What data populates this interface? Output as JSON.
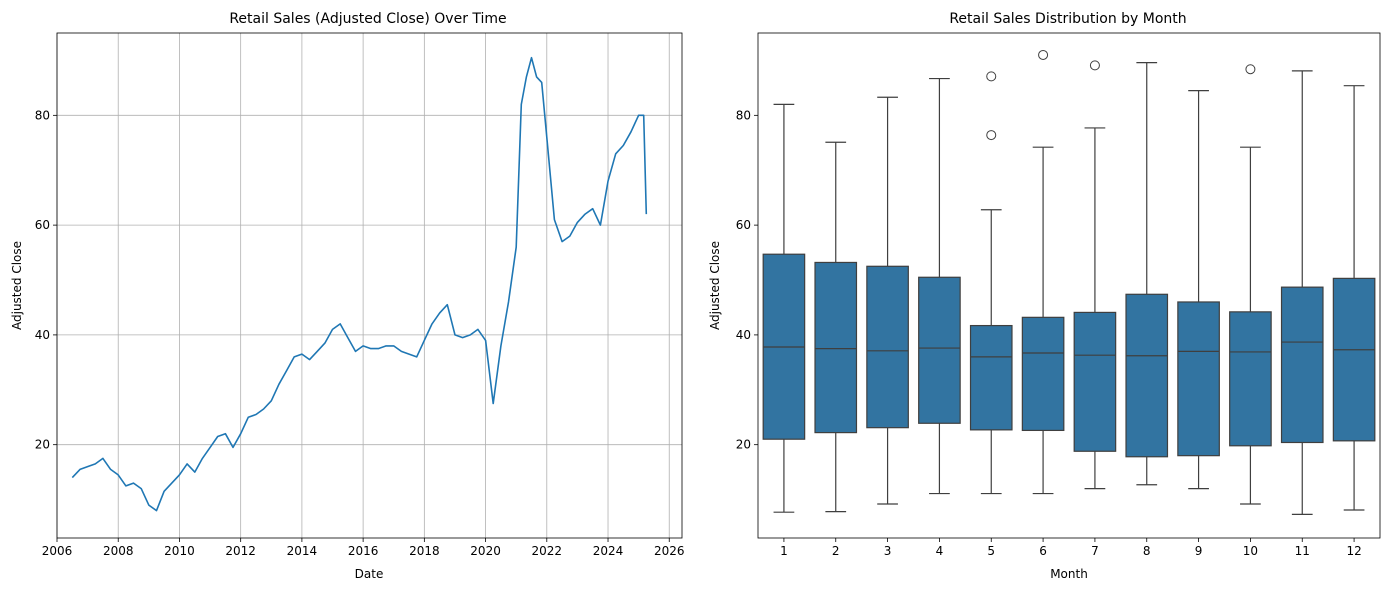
{
  "chart_data": [
    {
      "type": "line",
      "title": "Retail Sales (Adjusted Close) Over Time",
      "xlabel": "Date",
      "ylabel": "Adjusted Close",
      "x_ticks": [
        "2006",
        "2008",
        "2010",
        "2012",
        "2014",
        "2016",
        "2018",
        "2020",
        "2022",
        "2024",
        "2026"
      ],
      "y_ticks": [
        "20",
        "40",
        "60",
        "80"
      ],
      "xlim": [
        "2006-01",
        "2026-06"
      ],
      "ylim": [
        3,
        95
      ],
      "grid": true,
      "color": "#1f77b4",
      "series": [
        {
          "x": [
            "2006-07",
            "2006-10",
            "2007-01",
            "2007-04",
            "2007-07",
            "2007-10",
            "2008-01",
            "2008-04",
            "2008-07",
            "2008-10",
            "2009-01",
            "2009-04",
            "2009-07",
            "2009-10",
            "2010-01",
            "2010-04",
            "2010-07",
            "2010-10",
            "2011-01",
            "2011-04",
            "2011-07",
            "2011-10",
            "2012-01",
            "2012-04",
            "2012-07",
            "2012-10",
            "2013-01",
            "2013-04",
            "2013-07",
            "2013-10",
            "2014-01",
            "2014-04",
            "2014-07",
            "2014-10",
            "2015-01",
            "2015-04",
            "2015-07",
            "2015-10",
            "2016-01",
            "2016-04",
            "2016-07",
            "2016-10",
            "2017-01",
            "2017-04",
            "2017-07",
            "2017-10",
            "2018-01",
            "2018-04",
            "2018-07",
            "2018-10",
            "2019-01",
            "2019-04",
            "2019-07",
            "2019-10",
            "2020-01",
            "2020-04",
            "2020-07",
            "2020-10",
            "2021-01",
            "2021-03",
            "2021-05",
            "2021-07",
            "2021-09",
            "2021-11",
            "2022-01",
            "2022-04",
            "2022-07",
            "2022-10",
            "2023-01",
            "2023-04",
            "2023-07",
            "2023-10",
            "2024-01",
            "2024-04",
            "2024-07",
            "2024-10",
            "2025-01",
            "2025-03",
            "2025-04"
          ],
          "y": [
            14,
            15.5,
            16,
            16.5,
            17.5,
            15.5,
            14.5,
            12.5,
            13,
            12,
            9,
            8,
            11.5,
            13,
            14.5,
            16.5,
            15,
            17.5,
            19.5,
            21.5,
            22,
            19.5,
            22,
            25,
            25.5,
            26.5,
            28,
            31,
            33.5,
            36,
            36.5,
            35.5,
            37,
            38.5,
            41,
            42,
            39.5,
            37,
            38,
            37.5,
            37.5,
            38,
            38,
            37,
            36.5,
            36,
            39,
            42,
            44,
            45.5,
            40,
            39.5,
            40,
            41,
            39,
            27.5,
            38,
            46,
            56,
            82,
            87,
            90.5,
            87,
            86,
            76,
            61,
            57,
            58,
            60.5,
            62,
            63,
            60,
            68,
            73,
            74.5,
            77,
            80,
            80,
            62
          ]
        }
      ]
    },
    {
      "type": "box",
      "title": "Retail Sales Distribution by Month",
      "xlabel": "Month",
      "ylabel": "Adjusted Close",
      "categories": [
        "1",
        "2",
        "3",
        "4",
        "5",
        "6",
        "7",
        "8",
        "9",
        "10",
        "11",
        "12"
      ],
      "y_ticks": [
        "20",
        "40",
        "60",
        "80"
      ],
      "ylim": [
        3,
        95
      ],
      "color": "#3274a1",
      "boxes": [
        {
          "min": 7.7,
          "q1": 21,
          "median": 37.8,
          "q3": 54.7,
          "max": 82,
          "outliers": []
        },
        {
          "min": 7.8,
          "q1": 22.2,
          "median": 37.5,
          "q3": 53.2,
          "max": 75.1,
          "outliers": []
        },
        {
          "min": 9.2,
          "q1": 23.1,
          "median": 37.1,
          "q3": 52.5,
          "max": 83.3,
          "outliers": []
        },
        {
          "min": 11.1,
          "q1": 23.9,
          "median": 37.6,
          "q3": 50.5,
          "max": 86.7,
          "outliers": []
        },
        {
          "min": 11.1,
          "q1": 22.7,
          "median": 36,
          "q3": 41.7,
          "max": 62.8,
          "outliers": [
            76.4,
            87.1
          ]
        },
        {
          "min": 11.1,
          "q1": 22.6,
          "median": 36.7,
          "q3": 43.2,
          "max": 74.2,
          "outliers": [
            91
          ]
        },
        {
          "min": 12,
          "q1": 18.8,
          "median": 36.3,
          "q3": 44.1,
          "max": 77.7,
          "outliers": [
            89.1
          ]
        },
        {
          "min": 12.7,
          "q1": 17.8,
          "median": 36.2,
          "q3": 47.4,
          "max": 89.6,
          "outliers": []
        },
        {
          "min": 12,
          "q1": 18,
          "median": 37,
          "q3": 46,
          "max": 84.5,
          "outliers": []
        },
        {
          "min": 9.2,
          "q1": 19.8,
          "median": 36.9,
          "q3": 44.2,
          "max": 74.2,
          "outliers": [
            88.4
          ]
        },
        {
          "min": 7.3,
          "q1": 20.4,
          "median": 38.7,
          "q3": 48.7,
          "max": 88.1,
          "outliers": []
        },
        {
          "min": 8.1,
          "q1": 20.7,
          "median": 37.3,
          "q3": 50.3,
          "max": 85.4,
          "outliers": []
        }
      ]
    }
  ]
}
